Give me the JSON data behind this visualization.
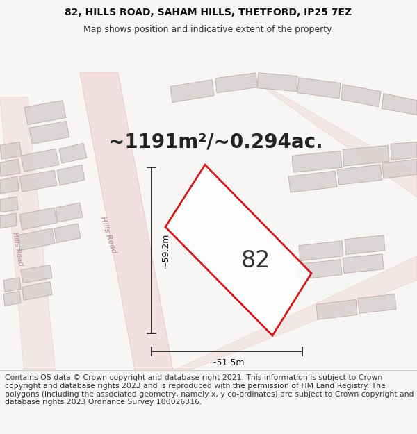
{
  "title_line1": "82, HILLS ROAD, SAHAM HILLS, THETFORD, IP25 7EZ",
  "title_line2": "Map shows position and indicative extent of the property.",
  "area_text": "~1191m²/~0.294ac.",
  "label_82": "82",
  "dim_vertical": "~59.2m",
  "dim_horizontal": "~51.5m",
  "road_label": "Hills Road",
  "road_label2": "Hills Road",
  "footer_text": "Contains OS data © Crown copyright and database right 2021. This information is subject to Crown copyright and database rights 2023 and is reproduced with the permission of HM Land Registry. The polygons (including the associated geometry, namely x, y co-ordinates) are subject to Crown copyright and database rights 2023 Ordnance Survey 100026316.",
  "bg_color": "#f8f5f5",
  "map_bg": "#f2eded",
  "plot_border_color": "#cc0000",
  "dim_line_color": "#111111",
  "label_color": "#333333",
  "area_color": "#222222",
  "title_fontsize": 10,
  "subtitle_fontsize": 9,
  "footer_fontsize": 7.8,
  "area_fontsize": 20,
  "label_82_fontsize": 24,
  "dim_fontsize": 9,
  "road_label_fontsize": 8,
  "header_bg": "#ffffff",
  "footer_bg": "#ffffff",
  "separator_color": "#cccccc",
  "road_fill": "#f0d8d8",
  "road_edge": "#e0b0b0",
  "bldg_fill": "#d8d0d0",
  "bldg_edge": "#c0a8a8"
}
